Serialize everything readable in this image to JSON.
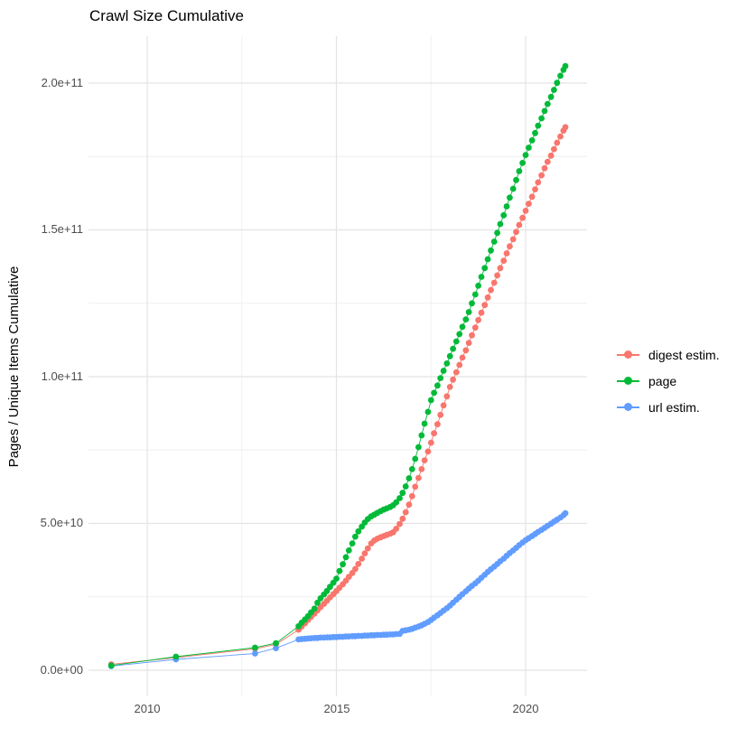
{
  "title": "Crawl Size Cumulative",
  "axes": {
    "y_title": "Pages / Unique Items Cumulative",
    "y_ticks": [
      {
        "label": "0.0e+00",
        "value_billions": 0
      },
      {
        "label": "5.0e+10",
        "value_billions": 50
      },
      {
        "label": "1.0e+11",
        "value_billions": 100
      },
      {
        "label": "1.5e+11",
        "value_billions": 150
      },
      {
        "label": "2.0e+11",
        "value_billions": 200
      }
    ],
    "x_ticks": [
      {
        "label": "2010",
        "value": 2010
      },
      {
        "label": "2015",
        "value": 2015
      },
      {
        "label": "2020",
        "value": 2020
      }
    ],
    "grid": {
      "x_major": [
        2010,
        2015,
        2020
      ],
      "x_minor": [
        2012.5,
        2017.5
      ],
      "y_major_billions": [
        0,
        50,
        100,
        150,
        200
      ],
      "y_minor_billions": [
        25,
        75,
        125,
        175
      ],
      "major_color": "#e4e4e4",
      "minor_color": "#efefef"
    }
  },
  "legend": {
    "items": [
      {
        "label": "digest estim.",
        "color": "#F8766D"
      },
      {
        "label": "page",
        "color": "#00BA38"
      },
      {
        "label": "url estim.",
        "color": "#619CFF"
      }
    ]
  },
  "chart_data": {
    "type": "scatter",
    "unit": "billions of items (1e9)",
    "xlabel": "",
    "ylabel": "Pages / Unique Items Cumulative",
    "xlim": [
      2008.45,
      2021.65
    ],
    "ylim": [
      0,
      216000000000.0
    ],
    "grid": "on",
    "legend_position": "right",
    "series": [
      {
        "name": "digest estim.",
        "color": "#F8766D",
        "points": [
          [
            2009.05,
            2.0
          ],
          [
            2010.76,
            4.3
          ],
          [
            2012.85,
            7.3
          ],
          [
            2013.4,
            8.8
          ],
          [
            2014.0,
            13.8
          ],
          [
            2014.08,
            14.9
          ],
          [
            2014.17,
            16.0
          ],
          [
            2014.25,
            17.1
          ],
          [
            2014.33,
            18.2
          ],
          [
            2014.42,
            19.3
          ],
          [
            2014.5,
            20.4
          ],
          [
            2014.58,
            21.5
          ],
          [
            2014.67,
            22.6
          ],
          [
            2014.75,
            23.7
          ],
          [
            2014.83,
            24.8
          ],
          [
            2014.92,
            25.9
          ],
          [
            2015.0,
            27.0
          ],
          [
            2015.08,
            28.1
          ],
          [
            2015.17,
            29.3
          ],
          [
            2015.25,
            30.5
          ],
          [
            2015.33,
            31.8
          ],
          [
            2015.42,
            33.1
          ],
          [
            2015.5,
            34.5
          ],
          [
            2015.58,
            36.2
          ],
          [
            2015.67,
            38.0
          ],
          [
            2015.75,
            39.8
          ],
          [
            2015.83,
            41.5
          ],
          [
            2015.92,
            43.2
          ],
          [
            2016.0,
            44.2
          ],
          [
            2016.08,
            44.8
          ],
          [
            2016.17,
            45.3
          ],
          [
            2016.25,
            45.7
          ],
          [
            2016.33,
            46.1
          ],
          [
            2016.42,
            46.5
          ],
          [
            2016.5,
            47.0
          ],
          [
            2016.58,
            48.2
          ],
          [
            2016.67,
            49.8
          ],
          [
            2016.75,
            51.6
          ],
          [
            2016.83,
            53.8
          ],
          [
            2016.92,
            56.4
          ],
          [
            2017.0,
            59.3
          ],
          [
            2017.08,
            62.5
          ],
          [
            2017.17,
            65.5
          ],
          [
            2017.25,
            68.5
          ],
          [
            2017.33,
            71.5
          ],
          [
            2017.42,
            74.5
          ],
          [
            2017.5,
            77.5
          ],
          [
            2017.58,
            80.7
          ],
          [
            2017.67,
            83.8
          ],
          [
            2017.75,
            87.0
          ],
          [
            2017.83,
            90.2
          ],
          [
            2017.92,
            93.3
          ],
          [
            2018.0,
            96.5
          ],
          [
            2018.08,
            99.0
          ],
          [
            2018.17,
            101.5
          ],
          [
            2018.25,
            104.0
          ],
          [
            2018.33,
            106.5
          ],
          [
            2018.42,
            109.0
          ],
          [
            2018.5,
            111.5
          ],
          [
            2018.58,
            114.1
          ],
          [
            2018.67,
            116.7
          ],
          [
            2018.75,
            119.3
          ],
          [
            2018.83,
            121.8
          ],
          [
            2018.92,
            124.4
          ],
          [
            2019.0,
            127.0
          ],
          [
            2019.08,
            129.5
          ],
          [
            2019.17,
            132.0
          ],
          [
            2019.25,
            134.5
          ],
          [
            2019.33,
            137.0
          ],
          [
            2019.42,
            139.5
          ],
          [
            2019.5,
            142.0
          ],
          [
            2019.58,
            144.4
          ],
          [
            2019.67,
            146.8
          ],
          [
            2019.75,
            149.3
          ],
          [
            2019.83,
            151.7
          ],
          [
            2019.92,
            154.1
          ],
          [
            2020.0,
            156.5
          ],
          [
            2020.08,
            158.9
          ],
          [
            2020.17,
            161.3
          ],
          [
            2020.25,
            163.8
          ],
          [
            2020.33,
            166.2
          ],
          [
            2020.42,
            168.6
          ],
          [
            2020.5,
            171.0
          ],
          [
            2020.58,
            173.2
          ],
          [
            2020.67,
            175.3
          ],
          [
            2020.75,
            177.5
          ],
          [
            2020.83,
            179.7
          ],
          [
            2020.92,
            181.8
          ],
          [
            2021.0,
            183.8
          ],
          [
            2021.05,
            185.0
          ]
        ]
      },
      {
        "name": "page",
        "color": "#00BA38",
        "points": [
          [
            2009.05,
            1.6
          ],
          [
            2010.76,
            4.6
          ],
          [
            2012.85,
            7.7
          ],
          [
            2013.4,
            9.2
          ],
          [
            2014.0,
            15.0
          ],
          [
            2014.08,
            16.2
          ],
          [
            2014.17,
            17.3
          ],
          [
            2014.25,
            18.4
          ],
          [
            2014.33,
            19.7
          ],
          [
            2014.42,
            21.0
          ],
          [
            2014.5,
            23.0
          ],
          [
            2014.58,
            24.5
          ],
          [
            2014.67,
            25.8
          ],
          [
            2014.75,
            27.0
          ],
          [
            2014.83,
            28.4
          ],
          [
            2014.92,
            29.8
          ],
          [
            2015.0,
            31.2
          ],
          [
            2015.08,
            33.8
          ],
          [
            2015.17,
            36.1
          ],
          [
            2015.25,
            38.5
          ],
          [
            2015.33,
            40.8
          ],
          [
            2015.42,
            43.2
          ],
          [
            2015.5,
            45.5
          ],
          [
            2015.58,
            47.3
          ],
          [
            2015.67,
            48.9
          ],
          [
            2015.75,
            50.3
          ],
          [
            2015.83,
            51.5
          ],
          [
            2015.92,
            52.4
          ],
          [
            2016.0,
            53.0
          ],
          [
            2016.08,
            53.6
          ],
          [
            2016.17,
            54.2
          ],
          [
            2016.25,
            54.7
          ],
          [
            2016.33,
            55.1
          ],
          [
            2016.42,
            55.6
          ],
          [
            2016.5,
            56.2
          ],
          [
            2016.58,
            57.2
          ],
          [
            2016.67,
            58.6
          ],
          [
            2016.75,
            60.4
          ],
          [
            2016.83,
            62.6
          ],
          [
            2016.92,
            65.4
          ],
          [
            2017.0,
            68.5
          ],
          [
            2017.08,
            72.0
          ],
          [
            2017.17,
            76.0
          ],
          [
            2017.25,
            80.0
          ],
          [
            2017.33,
            84.0
          ],
          [
            2017.42,
            88.0
          ],
          [
            2017.5,
            92.0
          ],
          [
            2017.58,
            94.5
          ],
          [
            2017.67,
            97.0
          ],
          [
            2017.75,
            99.5
          ],
          [
            2017.83,
            102.0
          ],
          [
            2017.92,
            104.5
          ],
          [
            2018.0,
            107.0
          ],
          [
            2018.08,
            109.5
          ],
          [
            2018.17,
            112.0
          ],
          [
            2018.25,
            114.5
          ],
          [
            2018.33,
            117.0
          ],
          [
            2018.42,
            119.5
          ],
          [
            2018.5,
            122.0
          ],
          [
            2018.58,
            125.0
          ],
          [
            2018.67,
            128.0
          ],
          [
            2018.75,
            131.0
          ],
          [
            2018.83,
            134.0
          ],
          [
            2018.92,
            137.0
          ],
          [
            2019.0,
            140.0
          ],
          [
            2019.08,
            143.0
          ],
          [
            2019.17,
            146.0
          ],
          [
            2019.25,
            149.0
          ],
          [
            2019.33,
            152.0
          ],
          [
            2019.42,
            155.0
          ],
          [
            2019.5,
            158.0
          ],
          [
            2019.58,
            161.0
          ],
          [
            2019.67,
            164.0
          ],
          [
            2019.75,
            167.0
          ],
          [
            2019.83,
            170.0
          ],
          [
            2019.92,
            172.8
          ],
          [
            2020.0,
            175.5
          ],
          [
            2020.08,
            178.0
          ],
          [
            2020.17,
            180.5
          ],
          [
            2020.25,
            183.0
          ],
          [
            2020.33,
            185.5
          ],
          [
            2020.42,
            188.0
          ],
          [
            2020.5,
            190.5
          ],
          [
            2020.58,
            192.9
          ],
          [
            2020.67,
            195.3
          ],
          [
            2020.75,
            197.7
          ],
          [
            2020.83,
            200.1
          ],
          [
            2020.92,
            202.5
          ],
          [
            2021.0,
            204.5
          ],
          [
            2021.05,
            205.8
          ]
        ]
      },
      {
        "name": "url estim.",
        "color": "#619CFF",
        "points": [
          [
            2009.05,
            1.4
          ],
          [
            2010.76,
            3.7
          ],
          [
            2012.85,
            5.7
          ],
          [
            2013.4,
            7.5
          ],
          [
            2014.0,
            10.5
          ],
          [
            2014.08,
            10.6
          ],
          [
            2014.17,
            10.7
          ],
          [
            2014.25,
            10.8
          ],
          [
            2014.33,
            10.9
          ],
          [
            2014.42,
            11.0
          ],
          [
            2014.5,
            11.0
          ],
          [
            2014.58,
            11.1
          ],
          [
            2014.67,
            11.1
          ],
          [
            2014.75,
            11.2
          ],
          [
            2014.83,
            11.2
          ],
          [
            2014.92,
            11.3
          ],
          [
            2015.0,
            11.3
          ],
          [
            2015.08,
            11.4
          ],
          [
            2015.17,
            11.4
          ],
          [
            2015.25,
            11.5
          ],
          [
            2015.33,
            11.5
          ],
          [
            2015.42,
            11.6
          ],
          [
            2015.5,
            11.6
          ],
          [
            2015.58,
            11.7
          ],
          [
            2015.67,
            11.7
          ],
          [
            2015.75,
            11.8
          ],
          [
            2015.83,
            11.8
          ],
          [
            2015.92,
            11.9
          ],
          [
            2016.0,
            11.9
          ],
          [
            2016.08,
            12.0
          ],
          [
            2016.17,
            12.0
          ],
          [
            2016.25,
            12.1
          ],
          [
            2016.33,
            12.1
          ],
          [
            2016.42,
            12.2
          ],
          [
            2016.5,
            12.2
          ],
          [
            2016.58,
            12.3
          ],
          [
            2016.67,
            12.4
          ],
          [
            2016.75,
            13.4
          ],
          [
            2016.83,
            13.6
          ],
          [
            2016.92,
            13.8
          ],
          [
            2017.0,
            14.1
          ],
          [
            2017.08,
            14.5
          ],
          [
            2017.17,
            14.9
          ],
          [
            2017.25,
            15.3
          ],
          [
            2017.33,
            15.8
          ],
          [
            2017.42,
            16.4
          ],
          [
            2017.5,
            17.1
          ],
          [
            2017.58,
            17.9
          ],
          [
            2017.67,
            18.7
          ],
          [
            2017.75,
            19.5
          ],
          [
            2017.83,
            20.3
          ],
          [
            2017.92,
            21.1
          ],
          [
            2018.0,
            22.0
          ],
          [
            2018.08,
            23.0
          ],
          [
            2018.17,
            24.0
          ],
          [
            2018.25,
            25.0
          ],
          [
            2018.33,
            25.9
          ],
          [
            2018.42,
            26.9
          ],
          [
            2018.5,
            27.8
          ],
          [
            2018.58,
            28.7
          ],
          [
            2018.67,
            29.6
          ],
          [
            2018.75,
            30.5
          ],
          [
            2018.83,
            31.5
          ],
          [
            2018.92,
            32.5
          ],
          [
            2019.0,
            33.5
          ],
          [
            2019.08,
            34.4
          ],
          [
            2019.17,
            35.3
          ],
          [
            2019.25,
            36.2
          ],
          [
            2019.33,
            37.1
          ],
          [
            2019.42,
            38.0
          ],
          [
            2019.5,
            39.0
          ],
          [
            2019.58,
            39.9
          ],
          [
            2019.67,
            40.8
          ],
          [
            2019.75,
            41.7
          ],
          [
            2019.83,
            42.6
          ],
          [
            2019.92,
            43.5
          ],
          [
            2020.0,
            44.3
          ],
          [
            2020.08,
            45.0
          ],
          [
            2020.17,
            45.7
          ],
          [
            2020.25,
            46.4
          ],
          [
            2020.33,
            47.1
          ],
          [
            2020.42,
            47.8
          ],
          [
            2020.5,
            48.5
          ],
          [
            2020.58,
            49.2
          ],
          [
            2020.67,
            49.9
          ],
          [
            2020.75,
            50.6
          ],
          [
            2020.83,
            51.3
          ],
          [
            2020.92,
            52.0
          ],
          [
            2021.0,
            52.8
          ],
          [
            2021.05,
            53.5
          ]
        ]
      }
    ]
  }
}
